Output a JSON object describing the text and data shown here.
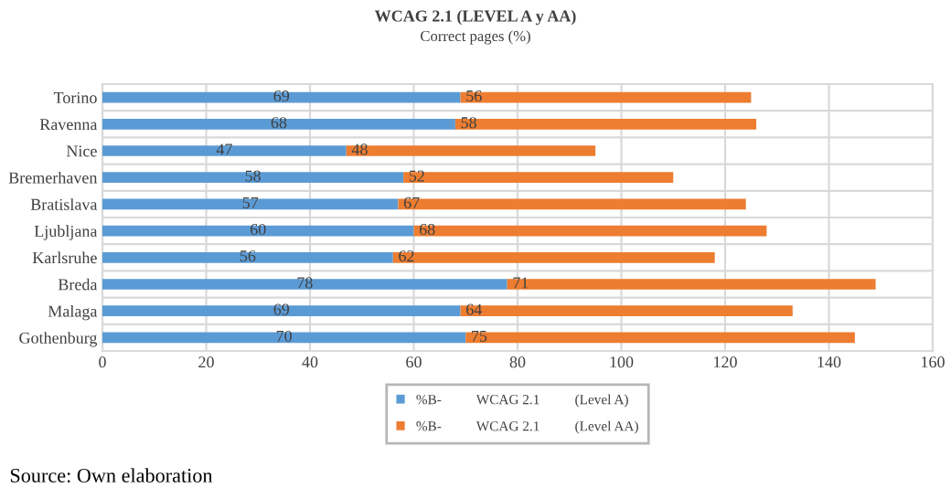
{
  "chart_data": {
    "type": "bar",
    "orientation": "horizontal",
    "stacked": true,
    "title": "WCAG 2.1 (LEVEL A y AA)",
    "subtitle": "Correct pages (%)",
    "categories": [
      "Torino",
      "Ravenna",
      "Nice",
      "Bremerhaven",
      "Bratislava",
      "Ljubljana",
      "Karlsruhe",
      "Breda",
      "Malaga",
      "Gothenburg"
    ],
    "series": [
      {
        "name": "%B-          WCAG 2.1          (Level A)",
        "color": "#5b9bd5",
        "values": [
          69,
          68,
          47,
          58,
          57,
          60,
          56,
          78,
          69,
          70
        ]
      },
      {
        "name": "%B-          WCAG 2.1          (Level AA)",
        "color": "#ed7d31",
        "values": [
          56,
          58,
          48,
          52,
          67,
          68,
          62,
          71,
          64,
          75
        ]
      }
    ],
    "xlim": [
      0,
      160
    ],
    "xticks": [
      0,
      20,
      40,
      60,
      80,
      100,
      120,
      140,
      160
    ],
    "grid": true,
    "data_labels": true,
    "legend": "bottom",
    "annotations": [
      "Source: Own elaboration"
    ]
  }
}
